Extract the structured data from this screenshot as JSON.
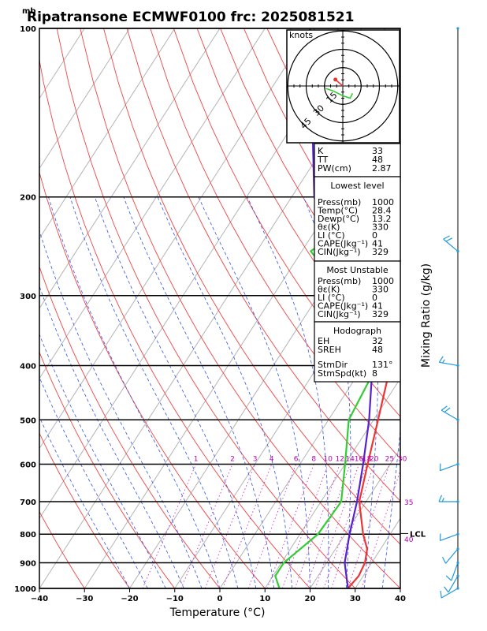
{
  "title": "Ripatransone ECMWF0100 frc: 2025081521",
  "chart_data": {
    "type": "line",
    "pressure_unit": "mb",
    "xlabel": "Temperature (°C)",
    "right_label": "Mixing Ratio (g/kg)",
    "temperature_ticks": [
      "−40",
      "−30",
      "−20",
      "−10",
      "0",
      "10",
      "20",
      "30",
      "40"
    ],
    "temperature_tick_values": [
      -40,
      -30,
      -20,
      -10,
      0,
      10,
      20,
      30,
      40
    ],
    "pressure_ticks": [
      "100",
      "200",
      "300",
      "400",
      "500",
      "600",
      "700",
      "800",
      "900",
      "1000"
    ],
    "pressure_tick_values": [
      100,
      200,
      300,
      400,
      500,
      600,
      700,
      800,
      900,
      1000
    ],
    "xlim": [
      -40,
      40
    ],
    "ylim_pressure": [
      1000,
      100
    ],
    "log_pressure": true,
    "mixing_ratio_labels": [
      {
        "value": 1,
        "label": "1"
      },
      {
        "value": 2,
        "label": "2"
      },
      {
        "value": 3,
        "label": "3"
      },
      {
        "value": 4,
        "label": "4"
      },
      {
        "value": 6,
        "label": "6"
      },
      {
        "value": 8,
        "label": "8"
      },
      {
        "value": 10,
        "label": "10"
      },
      {
        "value": 12,
        "label": "12"
      },
      {
        "value": 14,
        "label": "14"
      },
      {
        "value": 16,
        "label": "16"
      },
      {
        "value": 18,
        "label": "18"
      },
      {
        "value": 20,
        "label": "20"
      },
      {
        "value": 25,
        "label": "25"
      },
      {
        "value": 30,
        "label": "30"
      }
    ],
    "side_labels": [
      {
        "p": 700,
        "label": "35"
      },
      {
        "p": 815,
        "label": "40"
      }
    ],
    "lcl_label": "LCL",
    "lcl_pressure": 798,
    "series": [
      {
        "color": "#ee3333",
        "points": [
          [
            100,
            11
          ],
          [
            120,
            8
          ],
          [
            150,
            4.5
          ],
          [
            200,
            0
          ],
          [
            250,
            -2
          ],
          [
            300,
            2.5
          ],
          [
            400,
            6
          ],
          [
            500,
            11
          ],
          [
            600,
            15
          ],
          [
            700,
            18.5
          ],
          [
            800,
            24
          ],
          [
            850,
            27
          ],
          [
            900,
            28.5
          ],
          [
            950,
            29
          ],
          [
            1000,
            28.4
          ]
        ]
      },
      {
        "color": "#33cc33",
        "points": [
          [
            100,
            -13
          ],
          [
            150,
            -15
          ],
          [
            200,
            -19
          ],
          [
            250,
            -28
          ],
          [
            300,
            -14
          ],
          [
            400,
            3
          ],
          [
            500,
            4.5
          ],
          [
            600,
            10
          ],
          [
            700,
            14.5
          ],
          [
            800,
            14
          ],
          [
            900,
            10.5
          ],
          [
            950,
            10.5
          ],
          [
            1000,
            13.2
          ]
        ]
      },
      {
        "color": "#5522cc",
        "points": [
          [
            100,
            -60
          ],
          [
            200,
            -35
          ],
          [
            300,
            -15
          ],
          [
            400,
            2
          ],
          [
            500,
            9
          ],
          [
            600,
            14
          ],
          [
            700,
            18
          ],
          [
            800,
            21
          ],
          [
            900,
            24
          ],
          [
            1000,
            28.4
          ]
        ]
      }
    ],
    "wind_profile": [
      {
        "p": 1000,
        "dir": 240,
        "spd": 8
      },
      {
        "p": 950,
        "dir": 210,
        "spd": 10
      },
      {
        "p": 900,
        "dir": 200,
        "spd": 12
      },
      {
        "p": 850,
        "dir": 220,
        "spd": 10
      },
      {
        "p": 800,
        "dir": 250,
        "spd": 12
      },
      {
        "p": 700,
        "dir": 270,
        "spd": 15
      },
      {
        "p": 600,
        "dir": 250,
        "spd": 10
      },
      {
        "p": 500,
        "dir": 300,
        "spd": 20
      },
      {
        "p": 400,
        "dir": 280,
        "spd": 15
      },
      {
        "p": 250,
        "dir": 310,
        "spd": 20
      },
      {
        "p": 100,
        "dir": 0,
        "spd": 0
      }
    ],
    "hodograph": {
      "unit_label": "knots",
      "ring_labels": [
        "15",
        "30",
        "45"
      ],
      "ring_values": [
        15,
        30,
        45
      ],
      "trace": [
        [
          4,
          -3
        ],
        [
          3,
          -5
        ],
        [
          0,
          -4
        ],
        [
          -4,
          -2
        ],
        [
          -7,
          -1
        ]
      ],
      "storm_motion": {
        "dir": 131,
        "spd": 8
      }
    }
  },
  "indices": {
    "rows": [
      {
        "label": "K",
        "value": "33"
      },
      {
        "label": "TT",
        "value": "48"
      },
      {
        "label": "PW(cm)",
        "value": "2.87"
      }
    ]
  },
  "lowest_level": {
    "header": "Lowest level",
    "rows": [
      {
        "label": "Press(mb)",
        "value": "1000"
      },
      {
        "label": "Temp(°C)",
        "value": "28.4"
      },
      {
        "label": "Dewp(°C)",
        "value": "13.2"
      },
      {
        "label": "θε(K)",
        "value": "330"
      },
      {
        "label": "LI (°C)",
        "value": "0"
      },
      {
        "label": "CAPE(Jkg⁻¹)",
        "value": "41"
      },
      {
        "label": "CIN(Jkg⁻¹)",
        "value": "329"
      }
    ]
  },
  "most_unstable": {
    "header": "Most Unstable",
    "rows": [
      {
        "label": "Press(mb)",
        "value": "1000"
      },
      {
        "label": "θε(K)",
        "value": "330"
      },
      {
        "label": "LI (°C)",
        "value": "0"
      },
      {
        "label": "CAPE(Jkg⁻¹)",
        "value": "41"
      },
      {
        "label": "CIN(Jkg⁻¹)",
        "value": "329"
      }
    ]
  },
  "hodograph_table": {
    "header": "Hodograph",
    "rows": [
      {
        "label": "EH",
        "value": "32"
      },
      {
        "label": "SREH",
        "value": "48"
      },
      {
        "label": "StmDir",
        "value": "131°"
      },
      {
        "label": "StmSpd(kt)",
        "value": "8"
      }
    ]
  }
}
